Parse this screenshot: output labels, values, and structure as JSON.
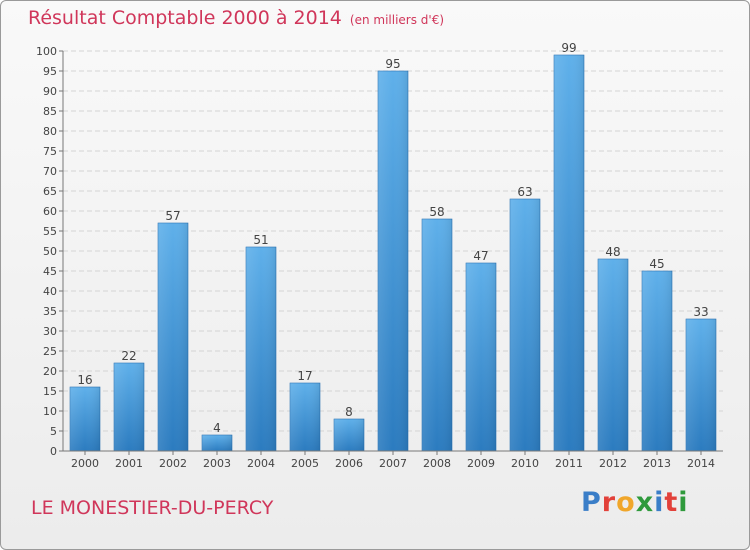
{
  "title": "Résultat Comptable 2000 à 2014",
  "unit": "(en milliers d'€)",
  "commune": "LE MONESTIER-DU-PERCY",
  "logo": {
    "text": "Proxiti",
    "colors": [
      "#3a7ec8",
      "#e2413a",
      "#f0a62a",
      "#2f9a3c",
      "#3a7ec8",
      "#e2413a",
      "#2f9a3c"
    ]
  },
  "colors": {
    "bar": "#3d94d8",
    "title": "#d0365a"
  },
  "chart_data": {
    "type": "bar",
    "categories": [
      "2000",
      "2001",
      "2002",
      "2003",
      "2004",
      "2005",
      "2006",
      "2007",
      "2008",
      "2009",
      "2010",
      "2011",
      "2012",
      "2013",
      "2014"
    ],
    "values": [
      16,
      22,
      57,
      4,
      51,
      17,
      8,
      95,
      58,
      47,
      63,
      99,
      48,
      45,
      33
    ],
    "ylim": [
      0,
      100
    ],
    "yticks": [
      0,
      5,
      10,
      15,
      20,
      25,
      30,
      35,
      40,
      45,
      50,
      55,
      60,
      65,
      70,
      75,
      80,
      85,
      90,
      95,
      100
    ],
    "grid": true,
    "title": "Résultat Comptable 2000 à 2014",
    "xlabel": "",
    "ylabel": ""
  }
}
